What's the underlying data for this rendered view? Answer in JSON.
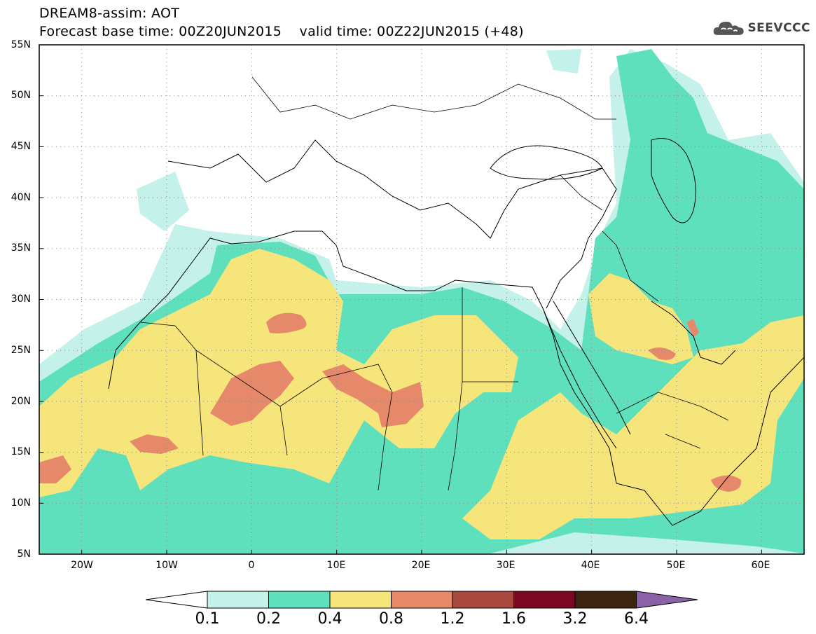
{
  "header": {
    "line1": "DREAM8-assim: AOT",
    "line2": "Forecast base time: 00Z20JUN2015    valid time: 00Z22JUN2015 (+48)"
  },
  "logo": {
    "text": "SEEVCCC",
    "icon": "cloud-icon"
  },
  "map": {
    "lon_range": [
      -25,
      65
    ],
    "lat_range": [
      5,
      55
    ],
    "lat_ticks": [
      "5N",
      "10N",
      "15N",
      "20N",
      "25N",
      "30N",
      "35N",
      "40N",
      "45N",
      "50N",
      "55N"
    ],
    "lon_ticks": [
      "20W",
      "10W",
      "0",
      "10E",
      "20E",
      "30E",
      "40E",
      "50E",
      "60E"
    ],
    "gridlines": "dotted"
  },
  "colorbar": {
    "labels": [
      "0.1",
      "0.2",
      "0.4",
      "0.8",
      "1.2",
      "1.6",
      "3.2",
      "6.4"
    ],
    "colors": [
      "#ffffff",
      "#c4f2ea",
      "#5fe0bc",
      "#f6e57a",
      "#e5896a",
      "#a8483f",
      "#7c0724",
      "#3c2411",
      "#8b62a8"
    ]
  },
  "palette": {
    "c02": "#c4f2ea",
    "c04": "#5fe0bc",
    "c08": "#f6e57a",
    "c12": "#e5896a"
  }
}
